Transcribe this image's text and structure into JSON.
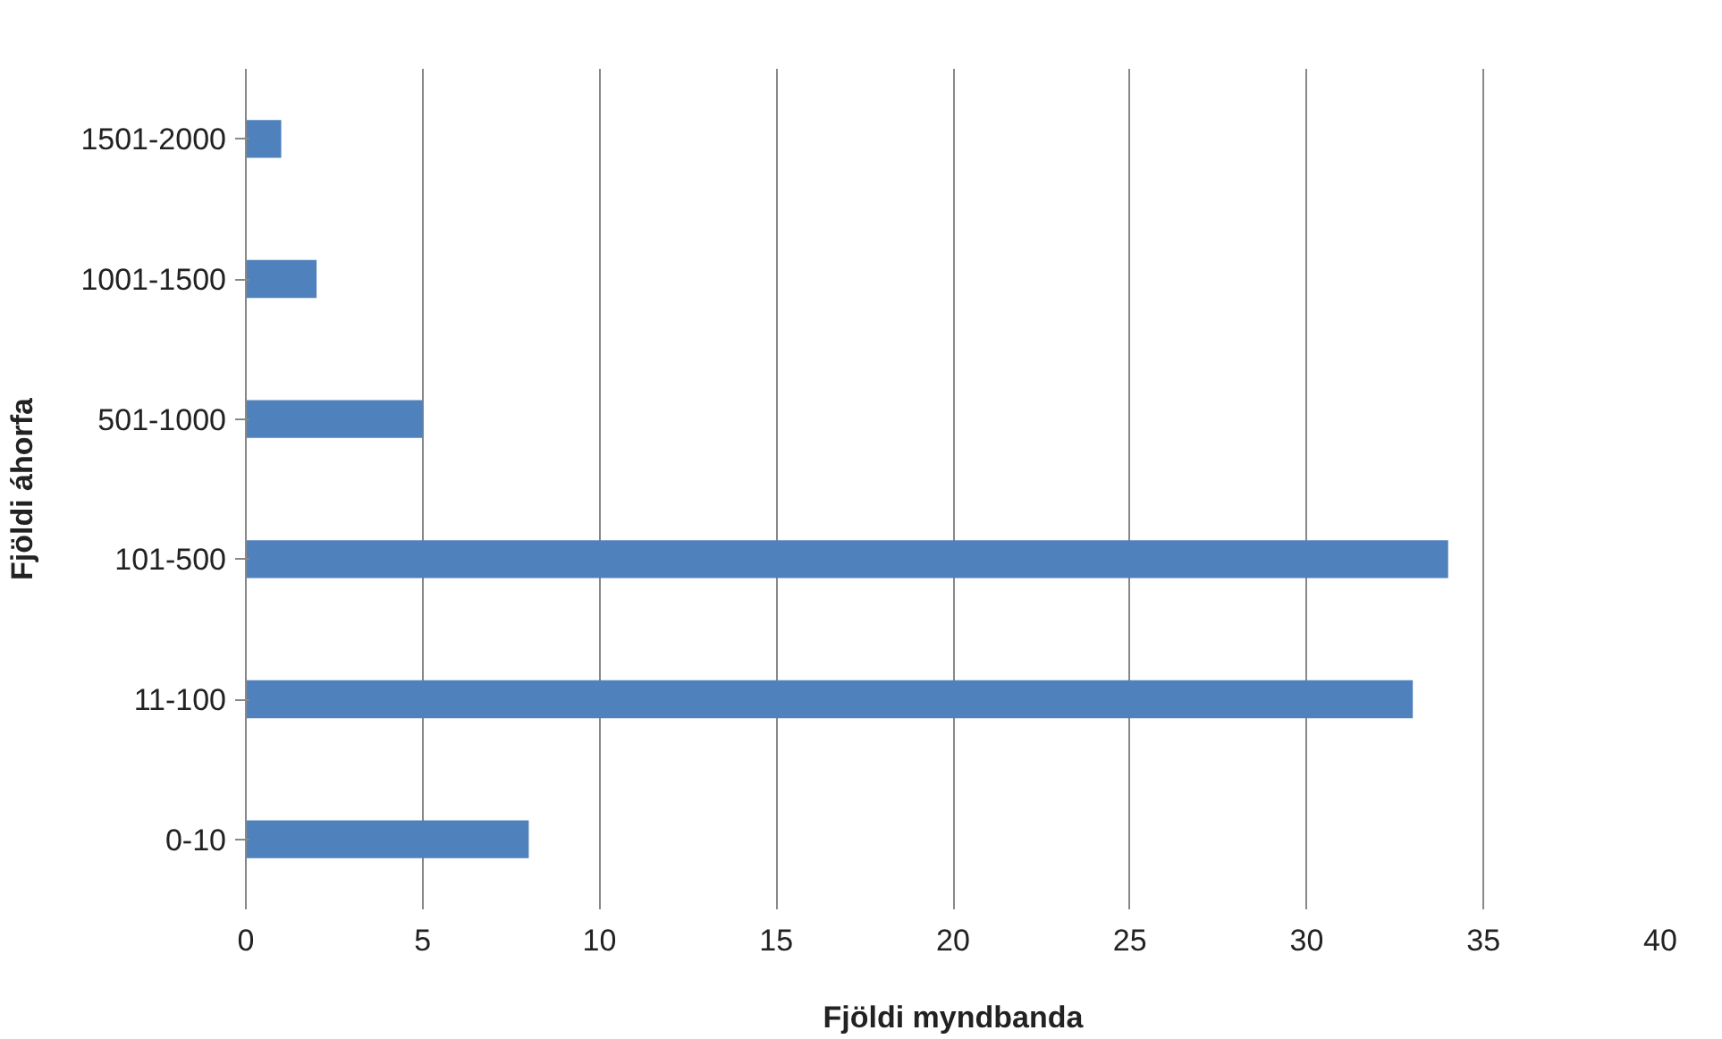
{
  "chart_data": {
    "type": "bar",
    "orientation": "horizontal",
    "xlabel": "Fjöldi myndbanda",
    "ylabel": "Fjöldi áhorfa",
    "categories": [
      "1501-2000",
      "1001-1500",
      "501-1000",
      "101-500",
      "11-100",
      "0-10"
    ],
    "values": [
      1,
      2,
      5,
      34,
      33,
      8
    ],
    "color": "#4f81bd",
    "xlim": [
      0,
      40
    ],
    "xticks": [
      0,
      5,
      10,
      15,
      20,
      25,
      30,
      35,
      40
    ],
    "grid": "x"
  }
}
